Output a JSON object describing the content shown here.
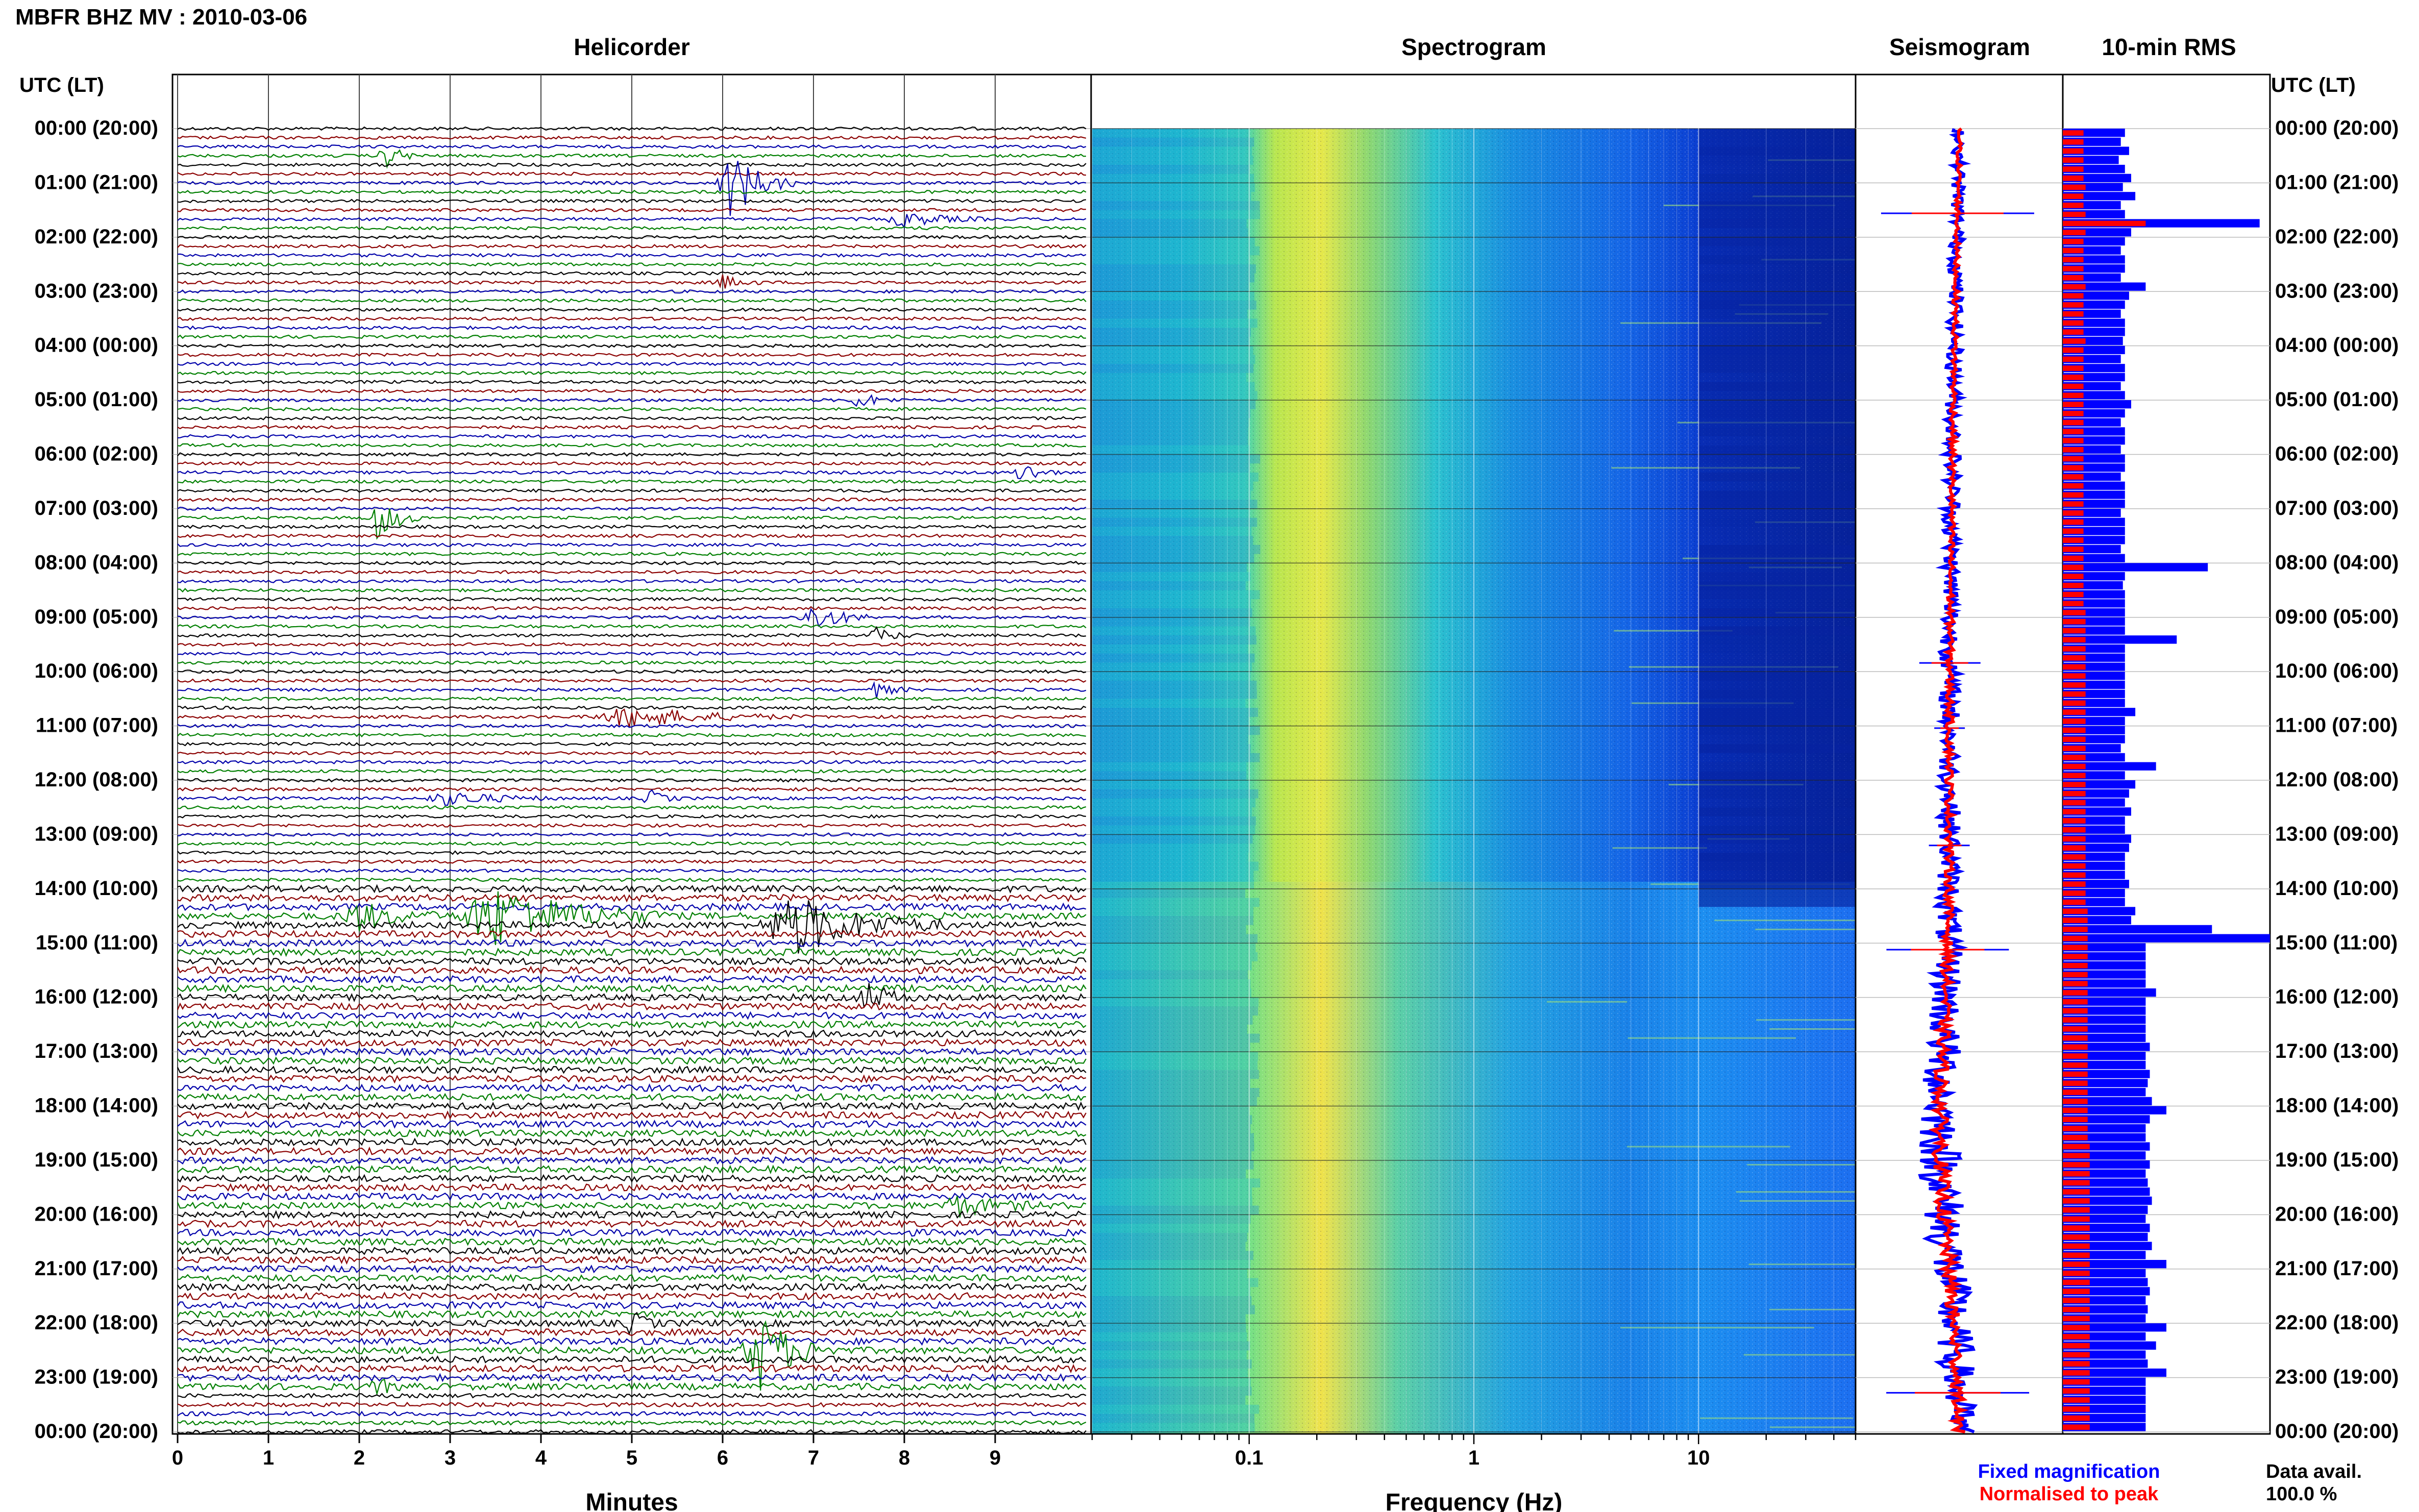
{
  "header": {
    "title": "MBFR BHZ MV : 2010-03-06"
  },
  "panels": {
    "helicorder": "Helicorder",
    "spectrogram": "Spectrogram",
    "seismogram": "Seismogram",
    "rms": "10-min RMS"
  },
  "axes": {
    "time_header_left": "UTC (LT)",
    "time_header_right": "UTC (LT)",
    "minutes_label": "Minutes",
    "frequency_label": "Frequency (Hz)"
  },
  "legend": {
    "fixed": "Fixed magnification",
    "normalised": "Normalised to peak",
    "fixed_color": "#0000ff",
    "normalised_color": "#ff0000"
  },
  "data_avail": {
    "label": "Data avail.",
    "value": "100.0 %"
  },
  "colors": {
    "trace_cycle": [
      "#000000",
      "#8b0000",
      "#0000aa",
      "#007f00"
    ],
    "rms_fixed": "#0000ff",
    "rms_normalised": "#ff0000"
  },
  "chart_data": {
    "type": "heatmap",
    "time_ticks": [
      "00:00 (20:00)",
      "01:00 (21:00)",
      "02:00 (22:00)",
      "03:00 (23:00)",
      "04:00 (00:00)",
      "05:00 (01:00)",
      "06:00 (02:00)",
      "07:00 (03:00)",
      "08:00 (04:00)",
      "09:00 (05:00)",
      "10:00 (06:00)",
      "11:00 (07:00)",
      "12:00 (08:00)",
      "13:00 (09:00)",
      "14:00 (10:00)",
      "15:00 (11:00)",
      "16:00 (12:00)",
      "17:00 (13:00)",
      "18:00 (14:00)",
      "19:00 (15:00)",
      "20:00 (16:00)",
      "21:00 (17:00)",
      "22:00 (18:00)",
      "23:00 (19:00)",
      "00:00 (20:00)"
    ],
    "minute_ticks": [
      "0",
      "1",
      "2",
      "3",
      "4",
      "5",
      "6",
      "7",
      "8",
      "9"
    ],
    "xlim_minutes": [
      0,
      10
    ],
    "frequency_ticks": [
      {
        "label": "0.1",
        "hz": 0.1
      },
      {
        "label": "1",
        "hz": 1
      },
      {
        "label": "10",
        "hz": 10
      }
    ],
    "xlim_frequency_hz": [
      0.02,
      50
    ],
    "frequency_scale": "log",
    "rms_hour_ticks": [
      0,
      1,
      2,
      3,
      4,
      5,
      6,
      7,
      8,
      9,
      10,
      11,
      12,
      13,
      14,
      15,
      16,
      17,
      18,
      19,
      20,
      21,
      22,
      23,
      24
    ],
    "rms_normalised": [
      0.1,
      0.1,
      0.1,
      0.1,
      0.1,
      0.1,
      0.11,
      0.1,
      0.1,
      0.11,
      0.4,
      0.11,
      0.1,
      0.1,
      0.1,
      0.1,
      0.1,
      0.11,
      0.1,
      0.1,
      0.1,
      0.1,
      0.1,
      0.11,
      0.1,
      0.1,
      0.1,
      0.1,
      0.1,
      0.1,
      0.1,
      0.1,
      0.1,
      0.1,
      0.1,
      0.1,
      0.1,
      0.1,
      0.1,
      0.1,
      0.1,
      0.1,
      0.1,
      0.1,
      0.1,
      0.1,
      0.1,
      0.1,
      0.1,
      0.1,
      0.1,
      0.1,
      0.1,
      0.11,
      0.11,
      0.11,
      0.11,
      0.11,
      0.11,
      0.11,
      0.11,
      0.11,
      0.11,
      0.11,
      0.11,
      0.11,
      0.11,
      0.11,
      0.11,
      0.11,
      0.11,
      0.11,
      0.11,
      0.11,
      0.11,
      0.11,
      0.11,
      0.11,
      0.11,
      0.11,
      0.11,
      0.11,
      0.11,
      0.11,
      0.11,
      0.11,
      0.12,
      0.12,
      0.12,
      0.12,
      0.12,
      0.12,
      0.12,
      0.12,
      0.12,
      0.12,
      0.12,
      0.12,
      0.12,
      0.12,
      0.12,
      0.12,
      0.12,
      0.12,
      0.12,
      0.12,
      0.12,
      0.12,
      0.12,
      0.12,
      0.12,
      0.12,
      0.13,
      0.13,
      0.13,
      0.13,
      0.13,
      0.13,
      0.13,
      0.13,
      0.13,
      0.13,
      0.13,
      0.13,
      0.13,
      0.13,
      0.13,
      0.13,
      0.13,
      0.13,
      0.13,
      0.13,
      0.13,
      0.13,
      0.13,
      0.13,
      0.13,
      0.13,
      0.13,
      0.13,
      0.13,
      0.13,
      0.13,
      0.13,
      0.13,
      0.13
    ],
    "rms_fixed": [
      0.3,
      0.28,
      0.32,
      0.27,
      0.3,
      0.33,
      0.29,
      0.35,
      0.28,
      0.3,
      0.95,
      0.33,
      0.3,
      0.28,
      0.3,
      0.3,
      0.28,
      0.4,
      0.32,
      0.3,
      0.28,
      0.3,
      0.3,
      0.29,
      0.3,
      0.28,
      0.3,
      0.3,
      0.28,
      0.3,
      0.33,
      0.3,
      0.28,
      0.3,
      0.3,
      0.28,
      0.3,
      0.3,
      0.28,
      0.3,
      0.3,
      0.3,
      0.28,
      0.3,
      0.3,
      0.3,
      0.28,
      0.3,
      0.7,
      0.3,
      0.29,
      0.3,
      0.3,
      0.3,
      0.3,
      0.3,
      0.55,
      0.3,
      0.3,
      0.3,
      0.3,
      0.3,
      0.3,
      0.3,
      0.35,
      0.3,
      0.3,
      0.3,
      0.28,
      0.3,
      0.45,
      0.3,
      0.35,
      0.32,
      0.3,
      0.33,
      0.3,
      0.3,
      0.33,
      0.32,
      0.3,
      0.3,
      0.3,
      0.32,
      0.3,
      0.3,
      0.35,
      0.33,
      0.72,
      1.0,
      0.4,
      0.4,
      0.4,
      0.4,
      0.4,
      0.45,
      0.4,
      0.4,
      0.4,
      0.4,
      0.4,
      0.42,
      0.4,
      0.4,
      0.42,
      0.41,
      0.4,
      0.43,
      0.5,
      0.42,
      0.4,
      0.4,
      0.42,
      0.4,
      0.42,
      0.4,
      0.41,
      0.42,
      0.43,
      0.41,
      0.4,
      0.42,
      0.41,
      0.43,
      0.4,
      0.5,
      0.4,
      0.41,
      0.42,
      0.4,
      0.41,
      0.4,
      0.5,
      0.4,
      0.45,
      0.4,
      0.41,
      0.5,
      0.4,
      0.4,
      0.4,
      0.4,
      0.4,
      0.4
    ],
    "series": [
      {
        "name": "Fixed magnification",
        "color": "#0000ff"
      },
      {
        "name": "Normalised to peak",
        "color": "#ff0000"
      }
    ]
  }
}
